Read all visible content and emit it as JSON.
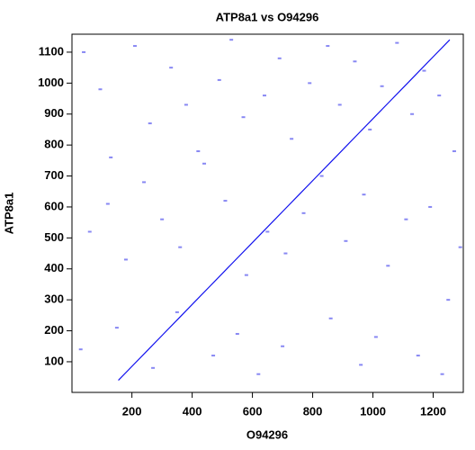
{
  "chart_data": {
    "type": "scatter",
    "title": "ATP8a1 vs O94296",
    "x_label": "O94296",
    "y_label": "ATP8a1",
    "xlim": [
      1,
      1300
    ],
    "ylim": [
      1,
      1158
    ],
    "xticks": [
      200,
      400,
      600,
      800,
      1000,
      1200
    ],
    "yticks": [
      100,
      200,
      300,
      400,
      500,
      600,
      700,
      800,
      900,
      1000,
      1100
    ],
    "series": [
      {
        "color": "#1010ee",
        "mode": "line",
        "x": [
          155,
          205,
          255,
          305,
          355,
          405,
          455,
          505,
          555,
          605,
          655,
          705,
          755,
          805,
          855,
          905,
          955,
          1005,
          1055,
          1105,
          1155,
          1205,
          1255
        ],
        "values": [
          40,
          90,
          140,
          190,
          240,
          290,
          340,
          390,
          440,
          490,
          540,
          590,
          640,
          690,
          740,
          790,
          840,
          890,
          940,
          990,
          1040,
          1090,
          1140
        ]
      },
      {
        "color": "#5555ee",
        "mode": "dots",
        "x": [
          40,
          95,
          130,
          210,
          260,
          330,
          380,
          420,
          490,
          530,
          570,
          640,
          690,
          730,
          790,
          850,
          890,
          940,
          990,
          1030,
          1080,
          1130,
          1170,
          1220,
          1270,
          60,
          120,
          180,
          240,
          300,
          360,
          440,
          510,
          580,
          650,
          710,
          770,
          830,
          910,
          970,
          1050,
          1110,
          1190,
          1250,
          1290,
          30,
          150,
          270,
          350,
          470,
          550,
          620,
          700,
          860,
          960,
          1010,
          1150,
          1230
        ],
        "values": [
          1100,
          980,
          760,
          1120,
          870,
          1050,
          930,
          780,
          1010,
          1140,
          890,
          960,
          1080,
          820,
          1000,
          1120,
          930,
          1070,
          850,
          990,
          1130,
          900,
          1040,
          960,
          780,
          520,
          610,
          430,
          680,
          560,
          470,
          740,
          620,
          380,
          520,
          450,
          580,
          700,
          490,
          640,
          410,
          560,
          600,
          300,
          470,
          140,
          210,
          80,
          260,
          120,
          190,
          60,
          150,
          240,
          90,
          180,
          120,
          60
        ]
      }
    ]
  }
}
